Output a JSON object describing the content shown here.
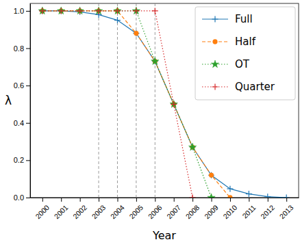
{
  "chart_data": {
    "type": "line",
    "x_label": "Year",
    "y_label": "λ",
    "x": [
      2000,
      2001,
      2002,
      2003,
      2004,
      2005,
      2006,
      2007,
      2008,
      2009,
      2010,
      2011,
      2012,
      2013
    ],
    "xlim": [
      1999.35,
      2013.65
    ],
    "xticks": [
      2000,
      2001,
      2002,
      2003,
      2004,
      2005,
      2006,
      2007,
      2008,
      2009,
      2010,
      2011,
      2012,
      2013
    ],
    "ylim": [
      0,
      1.04
    ],
    "yticks": [
      {
        "value": 0,
        "label": "0.0"
      },
      {
        "value": 0.2,
        "label": "0.2"
      },
      {
        "value": 0.4,
        "label": "0.4"
      },
      {
        "value": 0.6,
        "label": "0.6"
      },
      {
        "value": 0.8,
        "label": "0.8"
      },
      {
        "value": 1,
        "label": "1.0"
      }
    ],
    "legend": "upper right",
    "vlines": [
      2003,
      2004,
      2005,
      2006
    ],
    "series": [
      {
        "name": "Full",
        "color": "#1f77b4",
        "marker": "plus",
        "line_style": "solid",
        "values": [
          1.0,
          1.0,
          0.995,
          0.98,
          0.95,
          0.88,
          0.73,
          0.5,
          0.27,
          0.12,
          0.047,
          0.02,
          0.005,
          0.0
        ]
      },
      {
        "name": "Half",
        "color": "#ff7f0e",
        "marker": "circle",
        "line_style": "dashed",
        "values": [
          1.0,
          1.0,
          1.0,
          1.0,
          1.0,
          0.88,
          0.73,
          0.5,
          0.27,
          0.12,
          0.0,
          null,
          null,
          null
        ]
      },
      {
        "name": "OT",
        "color": "#2ca02c",
        "marker": "star",
        "line_style": "dotted",
        "values": [
          1.0,
          1.0,
          1.0,
          1.0,
          1.0,
          1.0,
          0.73,
          0.5,
          0.27,
          0.0,
          null,
          null,
          null,
          null
        ]
      },
      {
        "name": "Quarter",
        "color": "#d62728",
        "marker": "plus",
        "line_style": "dotted",
        "values": [
          1.0,
          1.0,
          1.0,
          1.0,
          1.0,
          1.0,
          1.0,
          0.5,
          0.0,
          null,
          null,
          null,
          null,
          null
        ]
      }
    ]
  }
}
